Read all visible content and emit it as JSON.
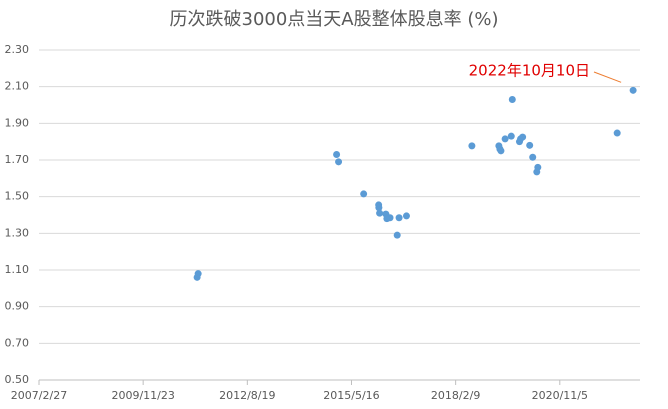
{
  "chart_data": {
    "type": "scatter",
    "title": "历次跌破3000点当天A股整体股息率 (%)",
    "annotation": "2022年10月10日",
    "color": "#5b9bd5",
    "grid": true,
    "x": [
      "2011/4/25",
      "2011/5/5",
      "2014/12/24",
      "2015/1/12",
      "2015/9/10",
      "2016/2/1",
      "2016/2/3",
      "2016/2/10",
      "2016/4/10",
      "2016/4/20",
      "2016/5/20",
      "2016/7/28",
      "2016/8/15",
      "2016/10/25",
      "2018/7/15",
      "2019/3/31",
      "2019/4/10",
      "2019/4/20",
      "2019/5/30",
      "2019/7/28",
      "2019/8/7",
      "2019/10/15",
      "2019/10/25",
      "2019/11/14",
      "2020/1/21",
      "2020/2/19",
      "2020/3/29",
      "2020/4/8",
      "2022/5/10",
      "2022/10/10"
    ],
    "values": [
      1.06,
      1.08,
      1.73,
      1.69,
      1.515,
      1.455,
      1.44,
      1.41,
      1.405,
      1.38,
      1.385,
      1.29,
      1.385,
      1.395,
      1.777,
      1.777,
      1.76,
      1.75,
      1.815,
      1.83,
      2.03,
      1.8,
      1.815,
      1.825,
      1.78,
      1.715,
      1.635,
      1.66,
      1.847,
      2.08
    ],
    "xlim": [
      "2007/2/27",
      "2022/12/15"
    ],
    "xticks": [
      "2007/2/27",
      "2009/11/23",
      "2012/8/19",
      "2015/5/16",
      "2018/2/9",
      "2020/11/5"
    ],
    "ylim": [
      0.5,
      2.3
    ],
    "yticks": [
      {
        "value": 0.5,
        "label": "0.50"
      },
      {
        "value": 0.7,
        "label": "0.70"
      },
      {
        "value": 0.9,
        "label": "0.90"
      },
      {
        "value": 1.1,
        "label": "1.10"
      },
      {
        "value": 1.3,
        "label": "1.30"
      },
      {
        "value": 1.5,
        "label": "1.50"
      },
      {
        "value": 1.7,
        "label": "1.70"
      },
      {
        "value": 1.9,
        "label": "1.90"
      },
      {
        "value": 2.1,
        "label": "2.10"
      },
      {
        "value": 2.3,
        "label": "2.30"
      }
    ]
  }
}
